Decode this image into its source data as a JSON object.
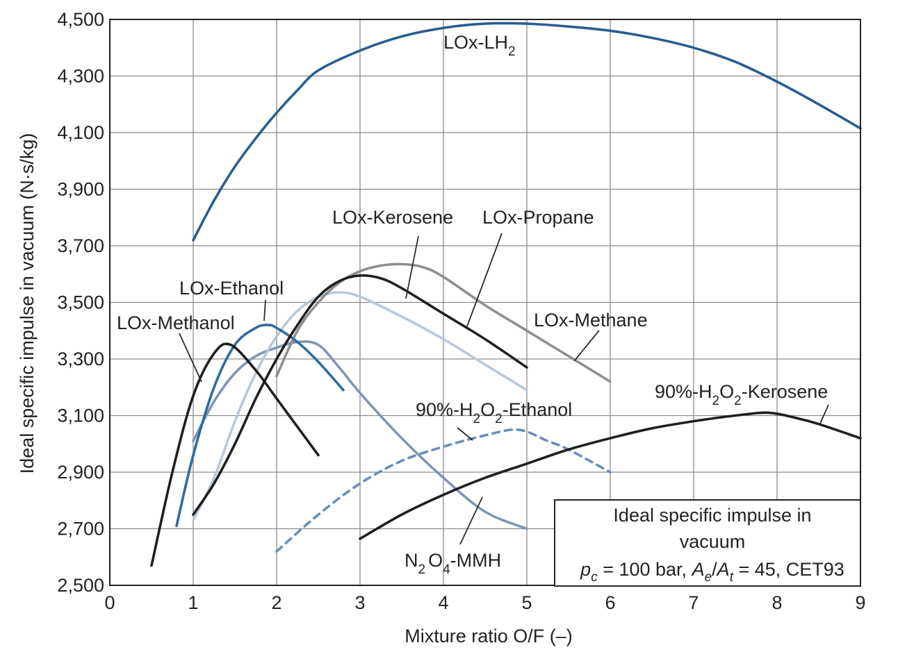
{
  "chart_data": {
    "type": "line",
    "xlabel": "Mixture ratio O/F (–)",
    "ylabel": "Ideal specific impulse in vacuum (N·s/kg)",
    "xlim": [
      0,
      9
    ],
    "ylim": [
      2500,
      4500
    ],
    "x_ticks": [
      "0",
      "1",
      "2",
      "3",
      "4",
      "5",
      "6",
      "7",
      "8",
      "9"
    ],
    "y_ticks": [
      "2,500",
      "2,700",
      "2,900",
      "3,100",
      "3,300",
      "3,500",
      "3,700",
      "3,900",
      "4,100",
      "4,300",
      "4,500"
    ],
    "grid": true,
    "legend_box": {
      "line1": "Ideal specific impulse in",
      "line2": "vacuum",
      "pc_symbol": "p",
      "pc_sub": "c",
      "pc_value": " = 100 bar, ",
      "ae_symbol": "A",
      "ae_sub": "e",
      "slash": "/",
      "at_symbol": "A",
      "at_sub": "t",
      "rest": " = 45, CET93",
      "placement": "bottom-right"
    },
    "series": [
      {
        "name": "LOx-LH₂",
        "label_main": "LOx-LH",
        "label_sub": "2",
        "color": "#2a5d8f",
        "style": "solid",
        "x": [
          1.0,
          1.25,
          1.5,
          1.75,
          2.0,
          2.25,
          2.5,
          3.0,
          3.5,
          4.0,
          4.5,
          5.0,
          5.5,
          6.0,
          6.5,
          7.0,
          7.5,
          8.0,
          8.5,
          9.0
        ],
        "y": [
          3720,
          3860,
          3980,
          4080,
          4170,
          4250,
          4320,
          4390,
          4440,
          4470,
          4485,
          4485,
          4475,
          4460,
          4435,
          4400,
          4350,
          4280,
          4200,
          4115
        ]
      },
      {
        "name": "LOx-Kerosene",
        "color": "#1f1f1f",
        "style": "solid",
        "x": [
          1.0,
          1.25,
          1.5,
          1.75,
          2.0,
          2.25,
          2.5,
          2.75,
          3.0,
          3.25,
          3.5,
          4.0,
          4.5,
          5.0
        ],
        "y": [
          2750,
          2860,
          3000,
          3160,
          3300,
          3420,
          3520,
          3575,
          3595,
          3585,
          3550,
          3460,
          3370,
          3270
        ]
      },
      {
        "name": "LOx-Propane",
        "color": "#8e8e8e",
        "style": "solid",
        "x": [
          2.0,
          2.25,
          2.5,
          2.75,
          3.0,
          3.25,
          3.5,
          3.75,
          4.0,
          4.5,
          5.0,
          5.5,
          6.0
        ],
        "y": [
          3240,
          3400,
          3500,
          3570,
          3610,
          3630,
          3635,
          3625,
          3590,
          3490,
          3400,
          3310,
          3220
        ]
      },
      {
        "name": "LOx-Methane",
        "color": "#b9c7dc",
        "style": "solid",
        "x": [
          1.0,
          1.25,
          1.5,
          1.75,
          2.0,
          2.25,
          2.5,
          2.75,
          3.0,
          3.5,
          4.0,
          4.5,
          5.0
        ],
        "y": [
          2730,
          2880,
          3080,
          3250,
          3380,
          3470,
          3520,
          3535,
          3520,
          3450,
          3370,
          3280,
          3190
        ]
      },
      {
        "name": "LOx-Ethanol",
        "color": "#2f6b9e",
        "style": "solid",
        "x": [
          0.8,
          1.0,
          1.25,
          1.5,
          1.75,
          1.9,
          2.0,
          2.25,
          2.5,
          2.8
        ],
        "y": [
          2710,
          2960,
          3200,
          3350,
          3410,
          3420,
          3410,
          3360,
          3290,
          3190
        ]
      },
      {
        "name": "LOx-Methanol",
        "color": "#1f1f1f",
        "style": "solid",
        "x": [
          0.5,
          0.75,
          1.0,
          1.25,
          1.45,
          1.75,
          2.0,
          2.25,
          2.5
        ],
        "y": [
          2570,
          2900,
          3170,
          3320,
          3350,
          3260,
          3160,
          3060,
          2960
        ]
      },
      {
        "name": "N₂O₄-MMH",
        "label_a": "N",
        "label_a_sub": "2",
        "label_b": "O",
        "label_b_sub": "4",
        "label_c": "-MMH",
        "color": "#7f94b7",
        "style": "solid",
        "x": [
          1.0,
          1.25,
          1.5,
          1.75,
          2.0,
          2.25,
          2.5,
          2.75,
          3.0,
          3.5,
          4.0,
          4.5,
          5.0
        ],
        "y": [
          3010,
          3150,
          3250,
          3310,
          3340,
          3360,
          3350,
          3270,
          3180,
          3020,
          2880,
          2760,
          2700
        ]
      },
      {
        "name": "90%-H₂O₂-Ethanol",
        "label_a": "90%-H",
        "label_a_sub": "2",
        "label_b": "O",
        "label_b_sub": "2",
        "label_c": "-Ethanol",
        "color": "#6a8dbd",
        "style": "dashed",
        "x": [
          2.0,
          2.5,
          3.0,
          3.5,
          4.0,
          4.5,
          4.9,
          5.25,
          5.5,
          6.0
        ],
        "y": [
          2620,
          2750,
          2860,
          2940,
          2990,
          3030,
          3050,
          3010,
          2980,
          2900
        ]
      },
      {
        "name": "90%-H₂O₂-Kerosene",
        "label_a": "90%-H",
        "label_a_sub": "2",
        "label_b": "O",
        "label_b_sub": "2",
        "label_c": "-Kerosene",
        "color": "#1f1f1f",
        "style": "solid",
        "x": [
          3.0,
          3.5,
          4.0,
          4.5,
          5.0,
          5.5,
          6.0,
          6.5,
          7.0,
          7.5,
          7.9,
          8.25,
          8.5,
          9.0
        ],
        "y": [
          2665,
          2750,
          2820,
          2880,
          2930,
          2980,
          3020,
          3055,
          3080,
          3100,
          3110,
          3090,
          3070,
          3020
        ]
      }
    ]
  }
}
